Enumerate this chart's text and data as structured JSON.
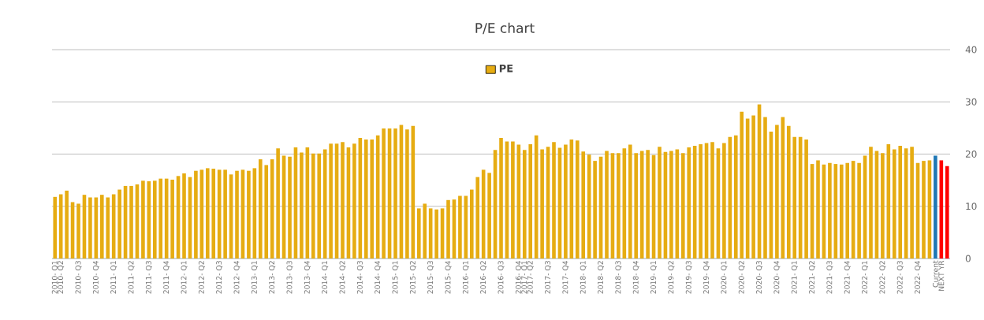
{
  "chart_data": {
    "type": "bar",
    "title": "P/E chart",
    "categories": [
      "2010- Q1",
      "2010- Q2",
      null,
      null,
      "2010- Q3",
      null,
      null,
      "2010- Q4",
      null,
      null,
      "2011- Q1",
      null,
      null,
      "2011- Q2",
      null,
      null,
      "2011- Q3",
      null,
      null,
      "2011- Q4",
      null,
      null,
      "2012- Q1",
      null,
      null,
      "2012- Q2",
      null,
      null,
      "2012- Q3",
      null,
      null,
      "2012- Q4",
      null,
      null,
      "2013- Q1",
      null,
      null,
      "2013- Q2",
      null,
      null,
      "2013- Q3",
      null,
      null,
      "2013- Q4",
      null,
      null,
      "2014- Q1",
      null,
      null,
      "2014- Q2",
      null,
      null,
      "2014- Q3",
      null,
      null,
      "2014- Q4",
      null,
      null,
      "2015- Q1",
      null,
      null,
      "2015- Q2",
      null,
      null,
      "2015- Q3",
      null,
      null,
      "2015- Q4",
      null,
      null,
      "2016- Q1",
      null,
      null,
      "2016- Q2",
      null,
      null,
      "2016- Q3",
      null,
      null,
      "2016- Q4",
      "2017- Q1",
      "2017- Q2",
      null,
      null,
      "2017- Q3",
      null,
      null,
      "2017- Q4",
      null,
      null,
      "2018- Q1",
      null,
      null,
      "2018- Q2",
      null,
      null,
      "2018- Q3",
      null,
      null,
      "2018- Q4",
      null,
      null,
      "2019- Q1",
      null,
      null,
      "2019- Q2",
      null,
      null,
      "2019- Q3",
      null,
      null,
      "2019- Q4",
      null,
      null,
      "2020- Q1",
      null,
      null,
      "2020- Q2",
      null,
      null,
      "2020- Q3",
      null,
      null,
      "2020- Q4",
      null,
      null,
      "2021- Q1",
      null,
      null,
      "2021- Q2",
      null,
      null,
      "2021- Q3",
      null,
      null,
      "2021- Q4",
      null,
      null,
      "2022- Q1",
      null,
      null,
      "2022- Q2",
      null,
      null,
      "2022- Q3",
      null,
      null,
      "2022- Q4",
      null,
      null,
      "Current",
      "NEXT YR",
      null
    ],
    "series": [
      {
        "name": "PE",
        "color": "#e6ac12",
        "values": [
          11.8,
          12.3,
          13.0,
          10.8,
          10.5,
          12.2,
          11.7,
          11.7,
          12.2,
          11.7,
          12.3,
          13.2,
          13.9,
          13.9,
          14.2,
          14.9,
          14.8,
          14.9,
          15.3,
          15.3,
          15.1,
          15.8,
          16.3,
          15.6,
          16.8,
          17.0,
          17.3,
          17.2,
          17.0,
          17.0,
          16.1,
          16.8,
          17.0,
          16.8,
          17.3,
          19.0,
          17.9,
          19.0,
          21.1,
          19.7,
          19.5,
          21.3,
          20.3,
          21.3,
          20.1,
          20.1,
          20.9,
          22.0,
          22.0,
          22.3,
          21.3,
          22.0,
          23.1,
          22.8,
          22.8,
          23.6,
          24.9,
          24.9,
          24.9,
          25.6,
          24.7,
          25.4,
          9.6,
          10.5,
          9.6,
          9.4,
          9.6,
          11.2,
          11.3,
          12.0,
          12.0,
          13.2,
          15.6,
          17.0,
          16.4,
          20.8,
          23.1,
          22.4,
          22.4,
          21.8,
          20.8,
          21.9,
          23.6,
          20.9,
          21.4,
          22.3,
          21.2,
          21.8,
          22.8,
          22.6,
          20.5,
          19.9,
          18.7,
          19.5,
          20.6,
          20.2,
          20.2,
          21.1,
          21.8,
          20.2,
          20.6,
          20.8,
          19.8,
          21.4,
          20.4,
          20.6,
          20.9,
          20.2,
          21.3,
          21.6,
          21.9,
          22.1,
          22.3,
          21.1,
          22.1,
          23.3,
          23.6,
          28.1,
          26.8,
          27.4,
          29.5,
          27.1,
          24.3,
          25.6,
          27.1,
          25.4,
          23.3,
          23.3,
          22.8,
          18.1,
          18.8,
          18.0,
          18.3,
          18.1,
          18.0,
          18.3,
          18.7,
          18.3,
          19.7,
          21.4,
          20.6,
          20.2,
          21.9,
          20.9,
          21.6,
          21.1,
          21.4,
          18.3,
          18.7,
          18.8,
          19.7,
          18.8,
          17.7
        ],
        "colors": [
          "#e6ac12",
          "#e6ac12",
          "#e6ac12",
          "#e6ac12",
          "#e6ac12",
          "#e6ac12",
          "#e6ac12",
          "#e6ac12",
          "#e6ac12",
          "#e6ac12",
          "#e6ac12",
          "#e6ac12",
          "#e6ac12",
          "#e6ac12",
          "#e6ac12",
          "#e6ac12",
          "#e6ac12",
          "#e6ac12",
          "#e6ac12",
          "#e6ac12",
          "#e6ac12",
          "#e6ac12",
          "#e6ac12",
          "#e6ac12",
          "#e6ac12",
          "#e6ac12",
          "#e6ac12",
          "#e6ac12",
          "#e6ac12",
          "#e6ac12",
          "#e6ac12",
          "#e6ac12",
          "#e6ac12",
          "#e6ac12",
          "#e6ac12",
          "#e6ac12",
          "#e6ac12",
          "#e6ac12",
          "#e6ac12",
          "#e6ac12",
          "#e6ac12",
          "#e6ac12",
          "#e6ac12",
          "#e6ac12",
          "#e6ac12",
          "#e6ac12",
          "#e6ac12",
          "#e6ac12",
          "#e6ac12",
          "#e6ac12",
          "#e6ac12",
          "#e6ac12",
          "#e6ac12",
          "#e6ac12",
          "#e6ac12",
          "#e6ac12",
          "#e6ac12",
          "#e6ac12",
          "#e6ac12",
          "#e6ac12",
          "#e6ac12",
          "#e6ac12",
          "#e6ac12",
          "#e6ac12",
          "#e6ac12",
          "#e6ac12",
          "#e6ac12",
          "#e6ac12",
          "#e6ac12",
          "#e6ac12",
          "#e6ac12",
          "#e6ac12",
          "#e6ac12",
          "#e6ac12",
          "#e6ac12",
          "#e6ac12",
          "#e6ac12",
          "#e6ac12",
          "#e6ac12",
          "#e6ac12",
          "#e6ac12",
          "#e6ac12",
          "#e6ac12",
          "#e6ac12",
          "#e6ac12",
          "#e6ac12",
          "#e6ac12",
          "#e6ac12",
          "#e6ac12",
          "#e6ac12",
          "#e6ac12",
          "#e6ac12",
          "#e6ac12",
          "#e6ac12",
          "#e6ac12",
          "#e6ac12",
          "#e6ac12",
          "#e6ac12",
          "#e6ac12",
          "#e6ac12",
          "#e6ac12",
          "#e6ac12",
          "#e6ac12",
          "#e6ac12",
          "#e6ac12",
          "#e6ac12",
          "#e6ac12",
          "#e6ac12",
          "#e6ac12",
          "#e6ac12",
          "#e6ac12",
          "#e6ac12",
          "#e6ac12",
          "#e6ac12",
          "#e6ac12",
          "#e6ac12",
          "#e6ac12",
          "#e6ac12",
          "#e6ac12",
          "#e6ac12",
          "#e6ac12",
          "#e6ac12",
          "#e6ac12",
          "#e6ac12",
          "#e6ac12",
          "#e6ac12",
          "#e6ac12",
          "#e6ac12",
          "#e6ac12",
          "#e6ac12",
          "#e6ac12",
          "#e6ac12",
          "#e6ac12",
          "#e6ac12",
          "#e6ac12",
          "#e6ac12",
          "#e6ac12",
          "#e6ac12",
          "#e6ac12",
          "#e6ac12",
          "#e6ac12",
          "#e6ac12",
          "#e6ac12",
          "#e6ac12",
          "#e6ac12",
          "#e6ac12",
          "#e6ac12",
          "#e6ac12",
          "#e6ac12",
          "#e6ac12",
          "#1f77b4",
          "#ff0000",
          "#ff0000"
        ]
      }
    ],
    "ylim": [
      0,
      40
    ],
    "yticks": [
      0,
      10,
      20,
      30,
      40
    ],
    "grid": "y",
    "legend": "top"
  }
}
